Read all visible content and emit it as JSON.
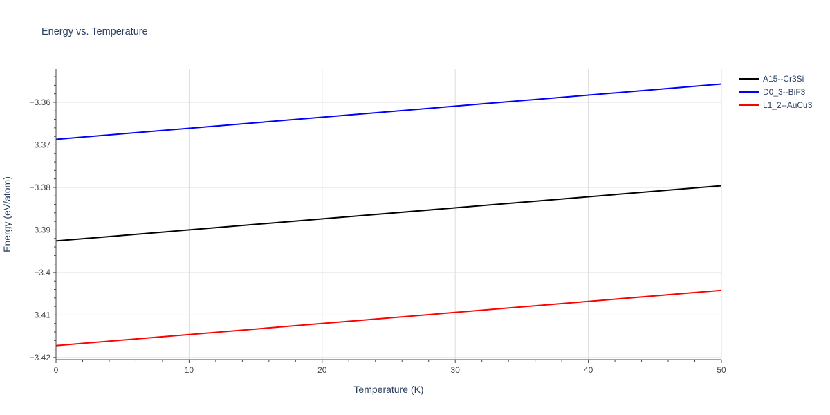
{
  "chart_data": {
    "type": "line",
    "title": "Energy vs. Temperature",
    "xlabel": "Temperature (K)",
    "ylabel": "Energy (eV/atom)",
    "xlim": [
      0,
      50
    ],
    "ylim": [
      -3.4205,
      -3.3522
    ],
    "x_ticks": [
      0,
      10,
      20,
      30,
      40,
      50
    ],
    "x_tick_labels": [
      "0",
      "10",
      "20",
      "30",
      "40",
      "50"
    ],
    "y_ticks": [
      -3.42,
      -3.41,
      -3.4,
      -3.39,
      -3.38,
      -3.37,
      -3.36
    ],
    "y_tick_labels": [
      "−3.42",
      "−3.41",
      "−3.4",
      "−3.39",
      "−3.38",
      "−3.37",
      "−3.36"
    ],
    "grid": true,
    "legend_position": "top-right",
    "series": [
      {
        "name": "A15--Cr3Si",
        "color": "#000000",
        "x": [
          0,
          50
        ],
        "y": [
          -3.3926,
          -3.3796
        ]
      },
      {
        "name": "D0_3--BiF3",
        "color": "#0000ff",
        "x": [
          0,
          50
        ],
        "y": [
          -3.3687,
          -3.3557
        ]
      },
      {
        "name": "L1_2--AuCu3",
        "color": "#ff0000",
        "x": [
          0,
          50
        ],
        "y": [
          -3.4172,
          -3.4042
        ]
      }
    ]
  }
}
